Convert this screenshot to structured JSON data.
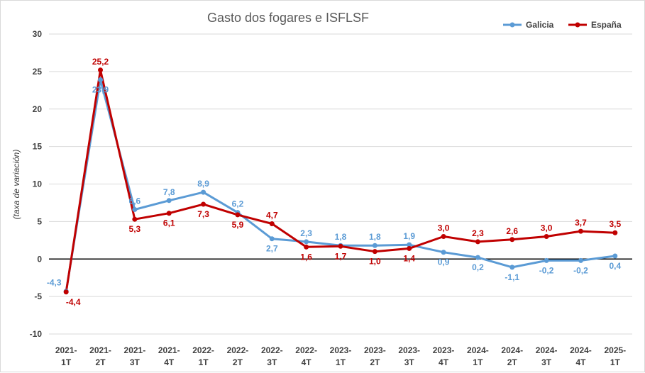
{
  "chart_data": {
    "type": "line",
    "title": "Gasto dos fogares e ISFLSF",
    "ylabel": "(taxa de variación)",
    "xlabel": "",
    "ylim": [
      -10,
      30
    ],
    "yticks": [
      -10,
      -5,
      0,
      5,
      10,
      15,
      20,
      25,
      30
    ],
    "grid": true,
    "legend_position": "top-right",
    "categories": [
      [
        "2021-",
        "1T"
      ],
      [
        "2021-",
        "2T"
      ],
      [
        "2021-",
        "3T"
      ],
      [
        "2021-",
        "4T"
      ],
      [
        "2022-",
        "1T"
      ],
      [
        "2022-",
        "2T"
      ],
      [
        "2022-",
        "3T"
      ],
      [
        "2022-",
        "4T"
      ],
      [
        "2023-",
        "1T"
      ],
      [
        "2023-",
        "2T"
      ],
      [
        "2023-",
        "3T"
      ],
      [
        "2023-",
        "4T"
      ],
      [
        "2024-",
        "1T"
      ],
      [
        "2024-",
        "2T"
      ],
      [
        "2024-",
        "3T"
      ],
      [
        "2024-",
        "4T"
      ],
      [
        "2025-",
        "1T"
      ]
    ],
    "series": [
      {
        "name": "Galicia",
        "color": "#5b9bd5",
        "values": [
          -4.3,
          23.9,
          6.6,
          7.8,
          8.9,
          6.2,
          2.7,
          2.3,
          1.8,
          1.8,
          1.9,
          0.9,
          0.2,
          -1.1,
          -0.2,
          -0.2,
          0.4
        ],
        "labels": [
          "-4,3",
          "23,9",
          "6,6",
          "7,8",
          "8,9",
          "6,2",
          "2,7",
          "2,3",
          "1,8",
          "1,8",
          "1,9",
          "0,9",
          "0,2",
          "-1,1",
          "-0,2",
          "-0,2",
          "0,4"
        ]
      },
      {
        "name": "España",
        "color": "#c00000",
        "values": [
          -4.4,
          25.2,
          5.3,
          6.1,
          7.3,
          5.9,
          4.7,
          1.6,
          1.7,
          1.0,
          1.4,
          3.0,
          2.3,
          2.6,
          3.0,
          3.7,
          3.5
        ],
        "labels": [
          "-4,4",
          "25,2",
          "5,3",
          "6,1",
          "7,3",
          "5,9",
          "4,7",
          "1,6",
          "1,7",
          "1,0",
          "1,4",
          "3,0",
          "2,3",
          "2,6",
          "3,0",
          "3,7",
          "3,5"
        ]
      }
    ]
  }
}
